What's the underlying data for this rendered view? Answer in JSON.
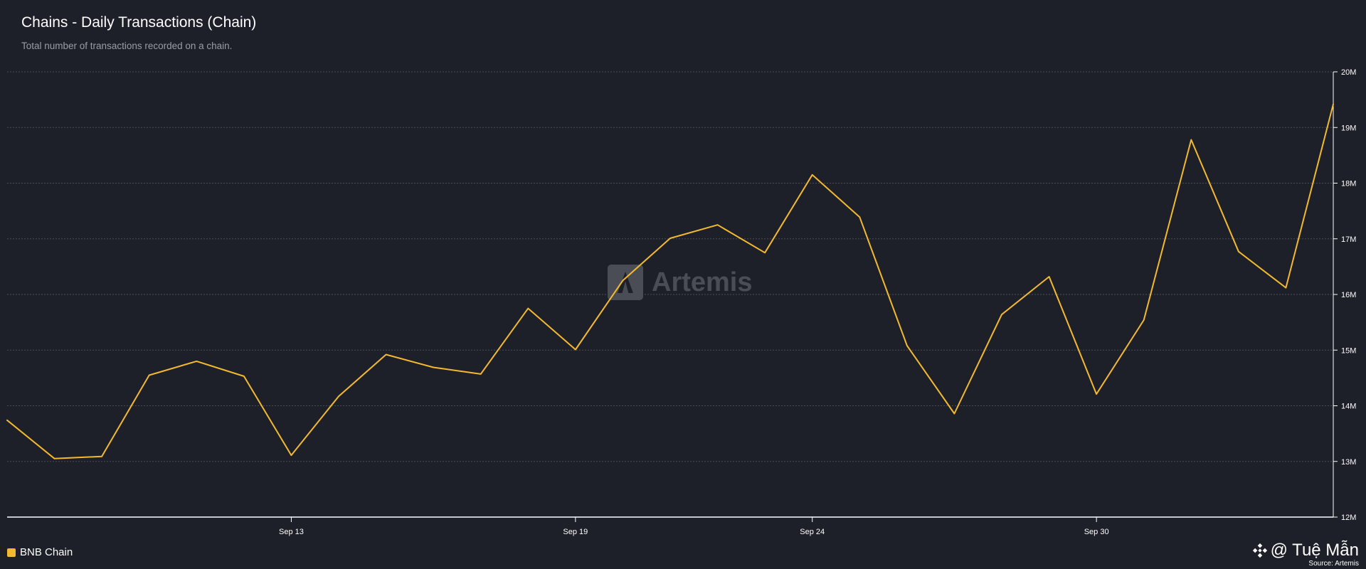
{
  "header": {
    "title": "Chains - Daily Transactions (Chain)",
    "subtitle": "Total number of transactions recorded on a chain."
  },
  "watermark": {
    "text": "Artemis",
    "icon": "artemis-logo-icon"
  },
  "credit": {
    "handle": "@ Tuệ Mẫn",
    "icon": "binance-logo-icon",
    "source": "Source: Artemis"
  },
  "colors": {
    "background": "#1d1f29",
    "series": "#f3ba2f",
    "grid": "#4a4c57",
    "axis": "#ffffff"
  },
  "chart_data": {
    "type": "line",
    "title": "Chains - Daily Transactions (Chain)",
    "subtitle": "Total number of transactions recorded on a chain.",
    "xlabel": "",
    "ylabel": "",
    "x_dates": [
      "2024-09-07",
      "2024-09-08",
      "2024-09-09",
      "2024-09-10",
      "2024-09-11",
      "2024-09-12",
      "2024-09-13",
      "2024-09-14",
      "2024-09-15",
      "2024-09-16",
      "2024-09-17",
      "2024-09-18",
      "2024-09-19",
      "2024-09-20",
      "2024-09-21",
      "2024-09-22",
      "2024-09-23",
      "2024-09-24",
      "2024-09-25",
      "2024-09-26",
      "2024-09-27",
      "2024-09-28",
      "2024-09-29",
      "2024-09-30",
      "2024-10-01",
      "2024-10-02",
      "2024-10-03",
      "2024-10-04",
      "2024-10-05"
    ],
    "x_ticks": [
      {
        "date": "2024-09-13",
        "label": "Sep 13"
      },
      {
        "date": "2024-09-19",
        "label": "Sep 19"
      },
      {
        "date": "2024-09-24",
        "label": "Sep 24"
      },
      {
        "date": "2024-09-30",
        "label": "Sep 30"
      }
    ],
    "y_ticks": [
      {
        "value": 12000000,
        "label": "12M"
      },
      {
        "value": 13000000,
        "label": "13M"
      },
      {
        "value": 14000000,
        "label": "14M"
      },
      {
        "value": 15000000,
        "label": "15M"
      },
      {
        "value": 16000000,
        "label": "16M"
      },
      {
        "value": 17000000,
        "label": "17M"
      },
      {
        "value": 18000000,
        "label": "18M"
      },
      {
        "value": 19000000,
        "label": "19M"
      },
      {
        "value": 20000000,
        "label": "20M"
      }
    ],
    "ylim": [
      12000000,
      20000000
    ],
    "grid": true,
    "legend_position": "bottom-left",
    "series": [
      {
        "name": "BNB Chain",
        "color": "#f3ba2f",
        "values": [
          13740000,
          13050000,
          13090000,
          14550000,
          14800000,
          14530000,
          13110000,
          14170000,
          14920000,
          14690000,
          14570000,
          15750000,
          15010000,
          16250000,
          17010000,
          17250000,
          16750000,
          18150000,
          17390000,
          15080000,
          13860000,
          15640000,
          16320000,
          14210000,
          15540000,
          18780000,
          16770000,
          16120000,
          19420000
        ]
      }
    ]
  }
}
